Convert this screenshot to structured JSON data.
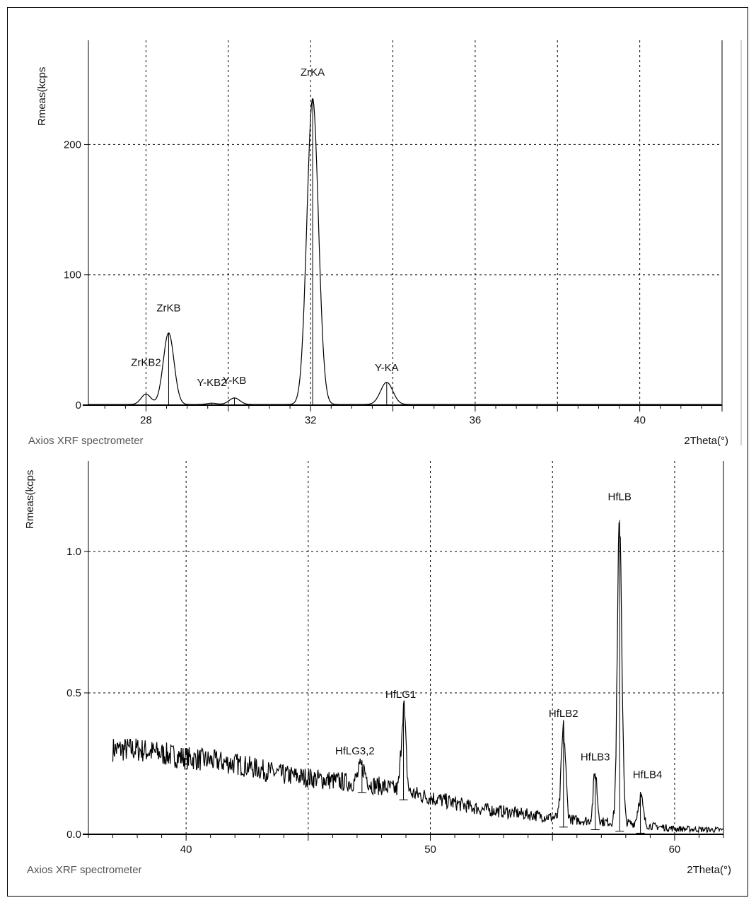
{
  "chart_data": [
    {
      "type": "line",
      "title": "",
      "xlabel": "2Theta(°)",
      "ylabel": "Rmeas(kcps",
      "footer": "Axios XRF spectrometer",
      "xlim": [
        26.6,
        42
      ],
      "ylim": [
        0,
        280
      ],
      "xticks": [
        28,
        32,
        36,
        40
      ],
      "yticks": [
        0,
        100,
        200
      ],
      "x_grid_step": 2,
      "grid": true,
      "grid_style": "dashed",
      "line_color": "#000000",
      "background": [
        [
          26.6,
          0.5
        ],
        [
          42,
          0.5
        ]
      ],
      "peaks": [
        {
          "label": "ZrKB2",
          "x": 28.0,
          "y": 8,
          "width": 0.12
        },
        {
          "label": "ZrKB",
          "x": 28.55,
          "y": 55,
          "width": 0.13
        },
        {
          "label": "Y-KB2",
          "x": 29.6,
          "y": 1,
          "width": 0.12
        },
        {
          "label": "Y-KB",
          "x": 30.15,
          "y": 5,
          "width": 0.13
        },
        {
          "label": "ZrKA",
          "x": 32.05,
          "y": 235,
          "width": 0.14
        },
        {
          "label": "Y-KA",
          "x": 33.85,
          "y": 17,
          "width": 0.15
        }
      ]
    },
    {
      "type": "line",
      "title": "",
      "xlabel": "2Theta(°)",
      "ylabel": "Rmeas(kcps",
      "footer": "Axios XRF spectrometer",
      "xlim": [
        36,
        62
      ],
      "ylim": [
        0,
        1.32
      ],
      "xticks": [
        40,
        50,
        60
      ],
      "yticks": [
        0.0,
        0.5,
        1.0
      ],
      "ytick_labels": [
        "0.0",
        "0.5",
        "1.0"
      ],
      "x_grid_step": 5,
      "grid": true,
      "grid_style": "dashed",
      "line_color": "#000000",
      "background": [
        [
          37,
          0.3
        ],
        [
          38,
          0.3
        ],
        [
          40,
          0.27
        ],
        [
          42,
          0.25
        ],
        [
          44,
          0.21
        ],
        [
          46,
          0.19
        ],
        [
          48,
          0.17
        ],
        [
          50,
          0.13
        ],
        [
          52,
          0.09
        ],
        [
          54,
          0.07
        ],
        [
          55,
          0.06
        ],
        [
          56,
          0.05
        ],
        [
          58,
          0.04
        ],
        [
          59,
          0.03
        ],
        [
          60,
          0.02
        ],
        [
          62,
          0.015
        ]
      ],
      "peaks": [
        {
          "label": "HfLG3,2",
          "x": 47.2,
          "y": 0.06,
          "width": 0.15
        },
        {
          "label": "HfLG1",
          "x": 48.9,
          "y": 0.3,
          "width": 0.09
        },
        {
          "label": "HfLB2",
          "x": 55.45,
          "y": 0.31,
          "width": 0.09
        },
        {
          "label": "HfLB3",
          "x": 56.75,
          "y": 0.17,
          "width": 0.08
        },
        {
          "label": "HfLB",
          "x": 57.75,
          "y": 1.07,
          "width": 0.09
        },
        {
          "label": "HfLB4",
          "x": 58.6,
          "y": 0.1,
          "width": 0.1
        }
      ]
    }
  ]
}
